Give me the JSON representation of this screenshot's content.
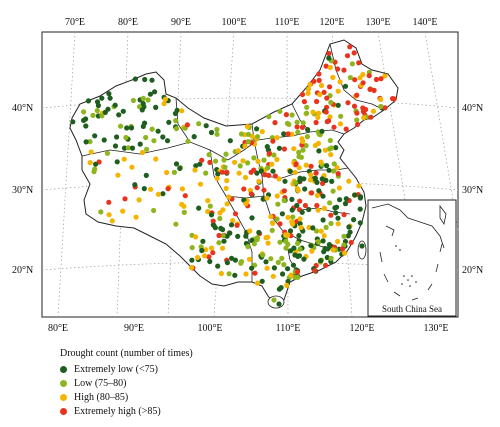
{
  "map": {
    "top_lon_labels": [
      "70°E",
      "80°E",
      "90°E",
      "100°E",
      "110°E",
      "120°E",
      "130°E",
      "140°E"
    ],
    "bottom_lon_labels": [
      "80°E",
      "90°E",
      "100°E",
      "110°E",
      "120°E",
      "130°E"
    ],
    "left_lat_labels": [
      "40°N",
      "30°N",
      "20°N"
    ],
    "right_lat_labels": [
      "40°N",
      "30°N",
      "20°N"
    ],
    "inset_label": "South China Sea"
  },
  "legend": {
    "title": "Drought count (number of times)",
    "items": [
      {
        "label": "Extremely low (<75)",
        "color": "#1e5e1e"
      },
      {
        "label": "Low (75–80)",
        "color": "#8db51e"
      },
      {
        "label": "High (80–85)",
        "color": "#f5b400"
      },
      {
        "label": "Extremely high (>85)",
        "color": "#e8341e"
      }
    ]
  },
  "colors": {
    "extremely_low": "#1e5e1e",
    "low": "#8db51e",
    "high": "#f5b400",
    "extremely_high": "#e8341e",
    "boundary": "#222222",
    "graticule": "#9a9a9a"
  }
}
